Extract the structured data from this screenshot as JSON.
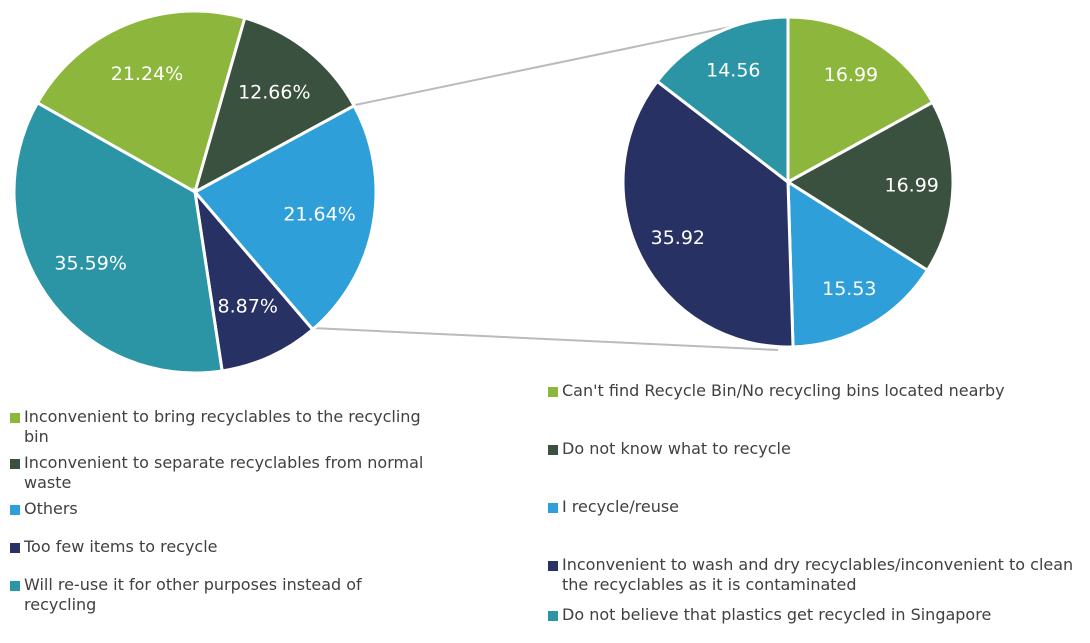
{
  "chart_data": [
    {
      "type": "pie",
      "categories": [
        "Inconvenient to bring recyclables to the recycling bin",
        "Inconvenient to separate recyclables from normal waste",
        "Others",
        "Too few items to recycle",
        "Will re-use it for other purposes instead of recycling"
      ],
      "values": [
        21.24,
        12.66,
        21.64,
        8.87,
        35.59
      ],
      "value_labels": [
        "21.24%",
        "12.66%",
        "21.64%",
        "8.87%",
        "35.59%"
      ],
      "colors": [
        "#8cb63c",
        "#3b5140",
        "#2e9fd8",
        "#283163",
        "#2b94a5"
      ]
    },
    {
      "type": "pie",
      "categories": [
        "Can't find Recycle Bin/No recycling bins located nearby",
        "Do not know what to recycle",
        "I recycle/reuse",
        "Inconvenient to wash and dry recyclables/inconvenient to clean the recyclables as it is contaminated",
        "Do not believe that plastics get recycled in Singapore"
      ],
      "values": [
        16.99,
        16.99,
        15.53,
        35.92,
        14.56
      ],
      "colors": [
        "#8cb63c",
        "#3b5140",
        "#2e9fd8",
        "#283163",
        "#2b94a5"
      ]
    }
  ]
}
